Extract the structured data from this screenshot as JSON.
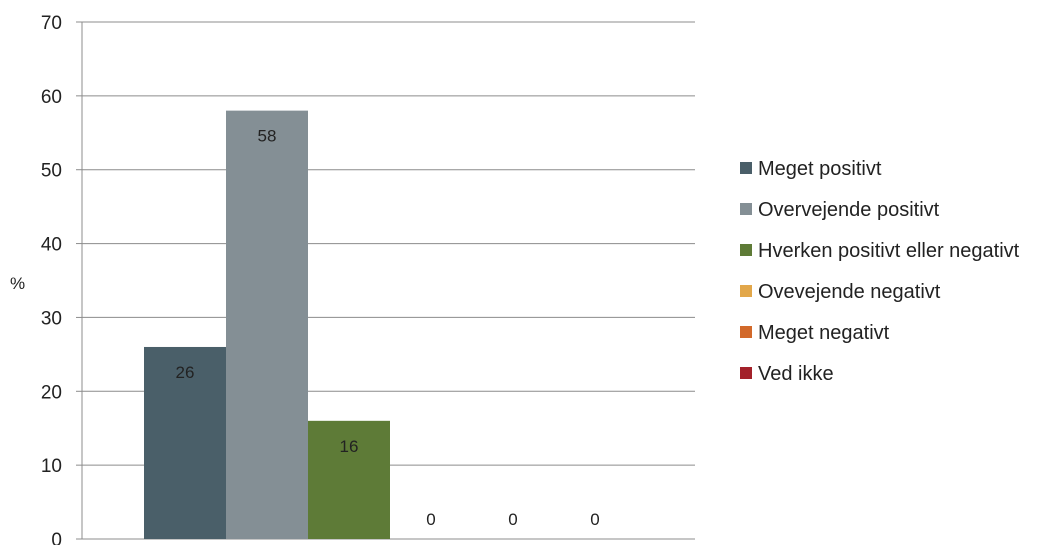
{
  "chart_data": {
    "type": "bar",
    "ylabel": "%",
    "ylim": [
      0,
      70
    ],
    "ytick_step": 10,
    "grid": true,
    "legend_position": "right",
    "series": [
      {
        "name": "Meget positivt",
        "value": 26,
        "label": "26",
        "color": "#4a5f69"
      },
      {
        "name": "Overvejende positivt",
        "value": 58,
        "label": "58",
        "color": "#848f95"
      },
      {
        "name": "Hverken positivt eller negativt",
        "value": 16,
        "label": "16",
        "color": "#5e7b37"
      },
      {
        "name": "Ovevejende negativt",
        "value": 0,
        "label": "0",
        "color": "#e2a74a"
      },
      {
        "name": "Meget negativt",
        "value": 0,
        "label": "0",
        "color": "#d2692a"
      },
      {
        "name": "Ved ikke",
        "value": 0,
        "label": "0",
        "color": "#a3212a"
      }
    ]
  }
}
